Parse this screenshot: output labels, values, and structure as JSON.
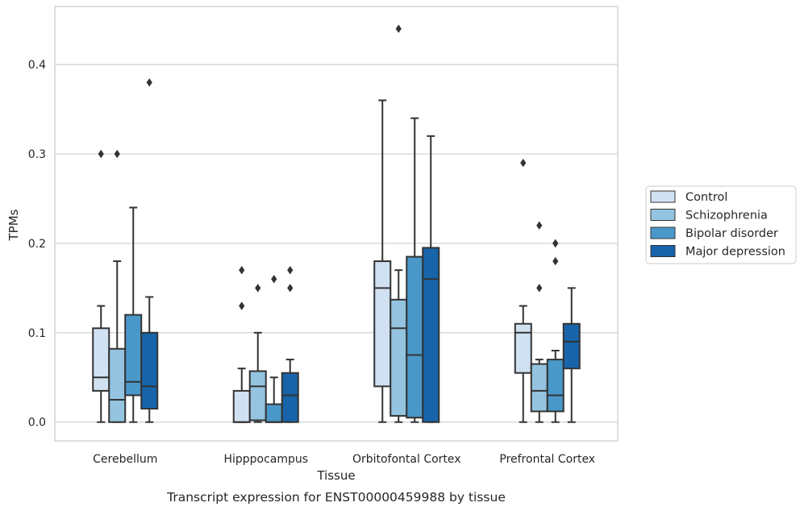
{
  "chart_data": {
    "type": "box",
    "title": "",
    "caption": "Transcript expression for ENST00000459988 by tissue",
    "xlabel": "Tissue",
    "ylabel": "TPMs",
    "ylim": [
      -0.021,
      0.465
    ],
    "yticks": [
      0.0,
      0.1,
      0.2,
      0.3,
      0.4
    ],
    "ytick_labels": [
      "0.0",
      "0.1",
      "0.2",
      "0.3",
      "0.4"
    ],
    "grid": "horizontal",
    "legend_position": "right",
    "categories": [
      "Cerebellum",
      "Hipppocampus",
      "Orbitofontal Cortex",
      "Prefrontal Cortex"
    ],
    "series": [
      {
        "name": "Control",
        "color": "#d0e1f2",
        "boxes": [
          {
            "whisker_low": 0.0,
            "q1": 0.035,
            "median": 0.05,
            "q3": 0.105,
            "whisker_high": 0.13,
            "outliers": [
              0.3
            ]
          },
          {
            "whisker_low": 0.0,
            "q1": 0.0,
            "median": 0.0,
            "q3": 0.035,
            "whisker_high": 0.06,
            "outliers": [
              0.13,
              0.17
            ]
          },
          {
            "whisker_low": 0.0,
            "q1": 0.04,
            "median": 0.15,
            "q3": 0.18,
            "whisker_high": 0.36,
            "outliers": []
          },
          {
            "whisker_low": 0.0,
            "q1": 0.055,
            "median": 0.1,
            "q3": 0.11,
            "whisker_high": 0.13,
            "outliers": [
              0.29
            ]
          }
        ]
      },
      {
        "name": "Schizophrenia",
        "color": "#94c4df",
        "boxes": [
          {
            "whisker_low": 0.0,
            "q1": 0.0,
            "median": 0.025,
            "q3": 0.082,
            "whisker_high": 0.18,
            "outliers": [
              0.3
            ]
          },
          {
            "whisker_low": 0.0,
            "q1": 0.002,
            "median": 0.04,
            "q3": 0.057,
            "whisker_high": 0.1,
            "outliers": [
              0.15
            ]
          },
          {
            "whisker_low": 0.0,
            "q1": 0.007,
            "median": 0.105,
            "q3": 0.137,
            "whisker_high": 0.17,
            "outliers": [
              0.44
            ]
          },
          {
            "whisker_low": 0.0,
            "q1": 0.012,
            "median": 0.035,
            "q3": 0.065,
            "whisker_high": 0.07,
            "outliers": [
              0.15,
              0.22
            ]
          }
        ]
      },
      {
        "name": "Bipolar disorder",
        "color": "#4a98c9",
        "boxes": [
          {
            "whisker_low": 0.0,
            "q1": 0.03,
            "median": 0.045,
            "q3": 0.12,
            "whisker_high": 0.24,
            "outliers": []
          },
          {
            "whisker_low": 0.0,
            "q1": 0.0,
            "median": 0.0,
            "q3": 0.02,
            "whisker_high": 0.05,
            "outliers": [
              0.16
            ]
          },
          {
            "whisker_low": 0.0,
            "q1": 0.005,
            "median": 0.075,
            "q3": 0.185,
            "whisker_high": 0.34,
            "outliers": []
          },
          {
            "whisker_low": 0.0,
            "q1": 0.012,
            "median": 0.03,
            "q3": 0.07,
            "whisker_high": 0.08,
            "outliers": [
              0.18,
              0.2,
              0.2
            ]
          }
        ]
      },
      {
        "name": "Major depression",
        "color": "#1764ab",
        "boxes": [
          {
            "whisker_low": 0.0,
            "q1": 0.015,
            "median": 0.04,
            "q3": 0.1,
            "whisker_high": 0.14,
            "outliers": [
              0.38
            ]
          },
          {
            "whisker_low": 0.0,
            "q1": 0.0,
            "median": 0.03,
            "q3": 0.055,
            "whisker_high": 0.07,
            "outliers": [
              0.15,
              0.17
            ]
          },
          {
            "whisker_low": 0.0,
            "q1": 0.0,
            "median": 0.16,
            "q3": 0.195,
            "whisker_high": 0.32,
            "outliers": []
          },
          {
            "whisker_low": 0.0,
            "q1": 0.06,
            "median": 0.09,
            "q3": 0.11,
            "whisker_high": 0.15,
            "outliers": []
          }
        ]
      }
    ]
  },
  "colors": {
    "box_edge": "#333333",
    "grid": "#cccccc",
    "frame": "#cccccc"
  }
}
